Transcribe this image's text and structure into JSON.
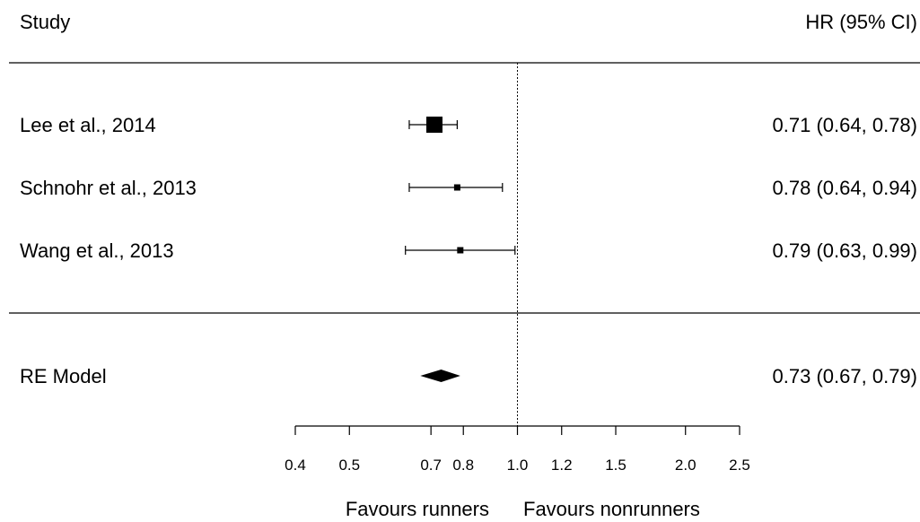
{
  "header": {
    "study_label": "Study",
    "estimate_label": "HR (95% CI)"
  },
  "chart_data": {
    "type": "forest",
    "x_scale": "log",
    "xlim": [
      0.4,
      2.5
    ],
    "reference_line": 1.0,
    "studies": [
      {
        "name": "Lee et al., 2014",
        "hr": 0.71,
        "lower": 0.64,
        "upper": 0.78,
        "label": "0.71 (0.64, 0.78)",
        "weight": "large"
      },
      {
        "name": "Schnohr et al., 2013",
        "hr": 0.78,
        "lower": 0.64,
        "upper": 0.94,
        "label": "0.78 (0.64, 0.94)",
        "weight": "small"
      },
      {
        "name": "Wang et al., 2013",
        "hr": 0.79,
        "lower": 0.63,
        "upper": 0.99,
        "label": "0.79 (0.63, 0.99)",
        "weight": "small"
      }
    ],
    "summary": {
      "name": "RE Model",
      "hr": 0.73,
      "lower": 0.67,
      "upper": 0.79,
      "label": "0.73 (0.67, 0.79)"
    },
    "x_ticks": [
      {
        "value": 0.4,
        "label": "0.4"
      },
      {
        "value": 0.5,
        "label": "0.5"
      },
      {
        "value": 0.7,
        "label": "0.7"
      },
      {
        "value": 0.8,
        "label": "0.8"
      },
      {
        "value": 1.0,
        "label": "1.0"
      },
      {
        "value": 1.2,
        "label": "1.2"
      },
      {
        "value": 1.5,
        "label": "1.5"
      },
      {
        "value": 2.0,
        "label": "2.0"
      },
      {
        "value": 2.5,
        "label": "2.5"
      }
    ],
    "favours_left": "Favours runners",
    "favours_right": "Favours nonrunners",
    "colors": {
      "ink": "#000000",
      "background": "#ffffff"
    }
  }
}
